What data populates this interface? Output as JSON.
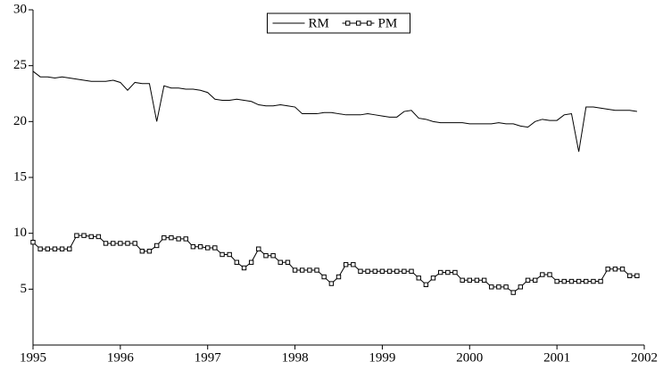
{
  "chart_data": {
    "type": "line",
    "x": [
      1995,
      1995.083,
      1995.167,
      1995.25,
      1995.333,
      1995.417,
      1995.5,
      1995.583,
      1995.667,
      1995.75,
      1995.833,
      1995.917,
      1996,
      1996.083,
      1996.167,
      1996.25,
      1996.333,
      1996.417,
      1996.5,
      1996.583,
      1996.667,
      1996.75,
      1996.833,
      1996.917,
      1997,
      1997.083,
      1997.167,
      1997.25,
      1997.333,
      1997.417,
      1997.5,
      1997.583,
      1997.667,
      1997.75,
      1997.833,
      1997.917,
      1998,
      1998.083,
      1998.167,
      1998.25,
      1998.333,
      1998.417,
      1998.5,
      1998.583,
      1998.667,
      1998.75,
      1998.833,
      1998.917,
      1999,
      1999.083,
      1999.167,
      1999.25,
      1999.333,
      1999.417,
      1999.5,
      1999.583,
      1999.667,
      1999.75,
      1999.833,
      1999.917,
      2000,
      2000.083,
      2000.167,
      2000.25,
      2000.333,
      2000.417,
      2000.5,
      2000.583,
      2000.667,
      2000.75,
      2000.833,
      2000.917,
      2001,
      2001.083,
      2001.167,
      2001.25,
      2001.333,
      2001.417,
      2001.5,
      2001.583,
      2001.667,
      2001.75,
      2001.833,
      2001.917
    ],
    "series": [
      {
        "name": "RM",
        "color": "#000000",
        "marker": "none",
        "values": [
          24.5,
          24.0,
          24.0,
          23.9,
          24.0,
          23.9,
          23.8,
          23.7,
          23.6,
          23.6,
          23.6,
          23.7,
          23.5,
          22.8,
          23.5,
          23.4,
          23.4,
          20.0,
          23.2,
          23.0,
          23.0,
          22.9,
          22.9,
          22.8,
          22.6,
          22.0,
          21.9,
          21.9,
          22.0,
          21.9,
          21.8,
          21.5,
          21.4,
          21.4,
          21.5,
          21.4,
          21.3,
          20.7,
          20.7,
          20.7,
          20.8,
          20.8,
          20.7,
          20.6,
          20.6,
          20.6,
          20.7,
          20.6,
          20.5,
          20.4,
          20.4,
          20.9,
          21.0,
          20.3,
          20.2,
          20.0,
          19.9,
          19.9,
          19.9,
          19.9,
          19.8,
          19.8,
          19.8,
          19.8,
          19.9,
          19.8,
          19.8,
          19.6,
          19.5,
          20.0,
          20.2,
          20.1,
          20.1,
          20.6,
          20.7,
          17.3,
          21.3,
          21.3,
          21.2,
          21.1,
          21.0,
          21.0,
          21.0,
          20.9
        ]
      },
      {
        "name": "PM",
        "color": "#000000",
        "marker": "square",
        "values": [
          9.2,
          8.6,
          8.6,
          8.6,
          8.6,
          8.6,
          9.8,
          9.8,
          9.7,
          9.7,
          9.1,
          9.1,
          9.1,
          9.1,
          9.1,
          8.4,
          8.4,
          8.9,
          9.6,
          9.6,
          9.5,
          9.5,
          8.8,
          8.8,
          8.7,
          8.7,
          8.1,
          8.1,
          7.4,
          6.9,
          7.4,
          8.6,
          8.0,
          8.0,
          7.4,
          7.4,
          6.7,
          6.7,
          6.7,
          6.7,
          6.1,
          5.5,
          6.1,
          7.2,
          7.2,
          6.6,
          6.6,
          6.6,
          6.6,
          6.6,
          6.6,
          6.6,
          6.6,
          6.0,
          5.4,
          6.0,
          6.5,
          6.5,
          6.5,
          5.8,
          5.8,
          5.8,
          5.8,
          5.2,
          5.2,
          5.2,
          4.7,
          5.2,
          5.8,
          5.8,
          6.3,
          6.3,
          5.7,
          5.7,
          5.7,
          5.7,
          5.7,
          5.7,
          5.7,
          6.8,
          6.8,
          6.8,
          6.2,
          6.2
        ]
      }
    ],
    "xlim": [
      1995,
      2002
    ],
    "xticks": [
      1995,
      1996,
      1997,
      1998,
      1999,
      2000,
      2001,
      2002
    ],
    "ylim": [
      0,
      30
    ],
    "yticks": [
      5,
      10,
      15,
      20,
      25,
      30
    ],
    "grid": false,
    "legend": "upper center"
  }
}
